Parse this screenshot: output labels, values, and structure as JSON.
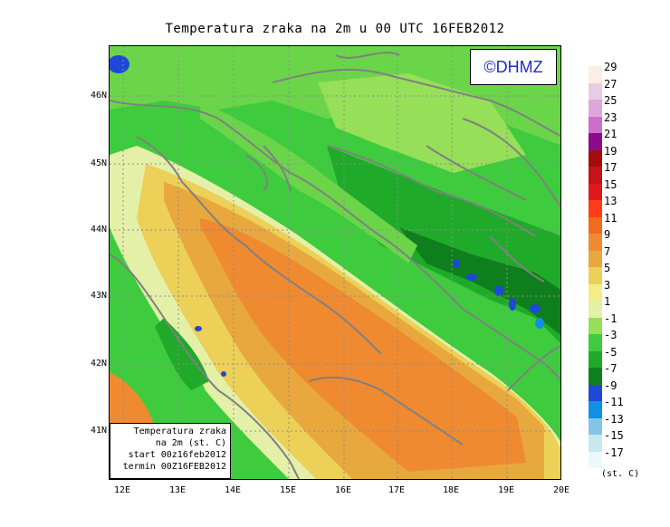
{
  "title": "Temperatura zraka na 2m u 00 UTC 16FEB2012",
  "watermark": "©DHMZ",
  "info_box": {
    "line1": "Temperatura zraka",
    "line2": "na 2m (st. C)",
    "line3": "start 00z16feb2012",
    "line4": "termin 00Z16FEB2012"
  },
  "axes": {
    "lat_labels": [
      "46N",
      "45N",
      "44N",
      "43N",
      "42N",
      "41N"
    ],
    "lon_labels": [
      "12E",
      "13E",
      "14E",
      "15E",
      "16E",
      "17E",
      "18E",
      "19E",
      "20E"
    ]
  },
  "legend": {
    "unit": "(st. C)",
    "labels": [
      "29",
      "27",
      "25",
      "23",
      "21",
      "19",
      "17",
      "15",
      "13",
      "11",
      "9",
      "7",
      "5",
      "3",
      "1",
      "-1",
      "-3",
      "-5",
      "-7",
      "-9",
      "-11",
      "-13",
      "-15",
      "-17"
    ],
    "colors": [
      "#fbeee2",
      "#e8cce6",
      "#dfa6dc",
      "#cb6fcb",
      "#8c0a8c",
      "#a50d0d",
      "#c4141a",
      "#e01a1a",
      "#ff3b1a",
      "#f26a1c",
      "#ef8a30",
      "#e8a83e",
      "#ecd057",
      "#f4ec87",
      "#e4f0a8",
      "#96df58",
      "#3ecb3e",
      "#20aa2a",
      "#0f7f1e",
      "#2048d8",
      "#1090e0",
      "#84c4e8",
      "#c6e8f0",
      "#eef8fb"
    ]
  }
}
